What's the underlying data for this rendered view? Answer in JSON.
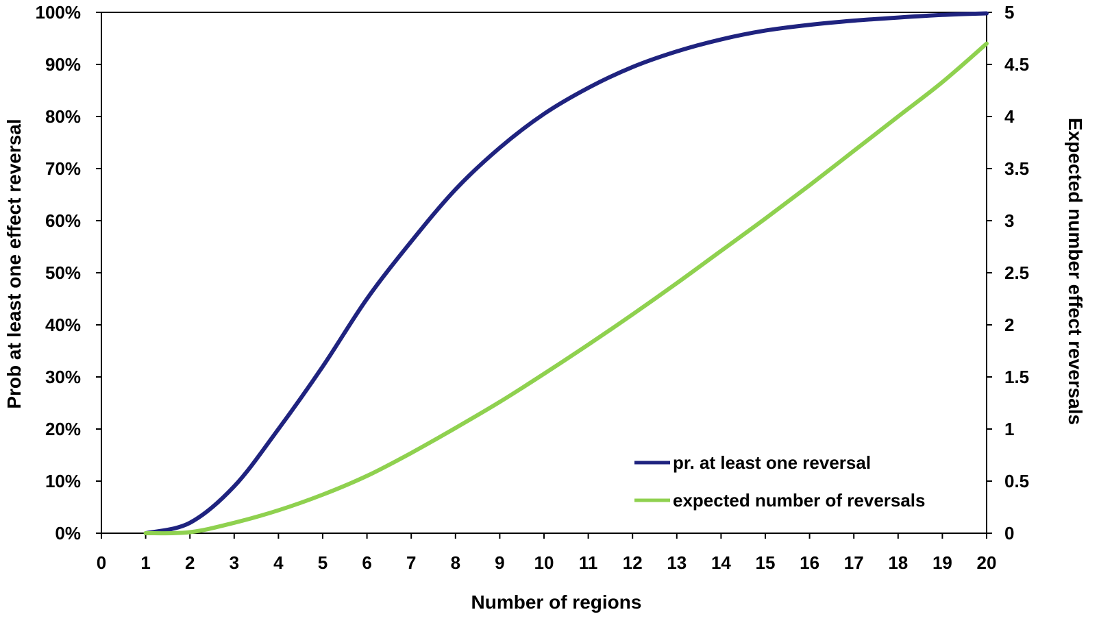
{
  "chart_data": {
    "type": "line",
    "xlabel": "Number of regions",
    "ylabel_left": "Prob at least one effect reversal",
    "ylabel_right": "Expected number effect reversals",
    "xlim": [
      0,
      20
    ],
    "ylim_left": [
      0,
      1
    ],
    "ylim_right": [
      0,
      5
    ],
    "x_ticks": [
      "0",
      "1",
      "2",
      "3",
      "4",
      "5",
      "6",
      "7",
      "8",
      "9",
      "10",
      "11",
      "12",
      "13",
      "14",
      "15",
      "16",
      "17",
      "18",
      "19",
      "20"
    ],
    "y_left_ticks": [
      "0%",
      "10%",
      "20%",
      "30%",
      "40%",
      "50%",
      "60%",
      "70%",
      "80%",
      "90%",
      "100%"
    ],
    "y_right_ticks": [
      "0",
      "0.5",
      "1",
      "1.5",
      "2",
      "2.5",
      "3",
      "3.5",
      "4",
      "4.5",
      "5"
    ],
    "grid": false,
    "legend_position": "bottom-right",
    "series": [
      {
        "name": "pr. at least one reversal",
        "axis": "left",
        "color": "#1f237f",
        "x": [
          1,
          2,
          3,
          4,
          5,
          6,
          7,
          8,
          9,
          10,
          11,
          12,
          13,
          14,
          15,
          16,
          17,
          18,
          19,
          20
        ],
        "y": [
          0.0,
          0.02,
          0.09,
          0.2,
          0.32,
          0.45,
          0.56,
          0.66,
          0.74,
          0.805,
          0.855,
          0.895,
          0.925,
          0.948,
          0.965,
          0.976,
          0.984,
          0.99,
          0.995,
          0.998
        ]
      },
      {
        "name": "expected number of reversals",
        "axis": "right",
        "color": "#8fd14f",
        "x": [
          1,
          2,
          3,
          4,
          5,
          6,
          7,
          8,
          9,
          10,
          11,
          12,
          13,
          14,
          15,
          16,
          17,
          18,
          19,
          20
        ],
        "y": [
          0.0,
          0.01,
          0.1,
          0.22,
          0.37,
          0.55,
          0.77,
          1.01,
          1.26,
          1.53,
          1.81,
          2.1,
          2.4,
          2.71,
          3.02,
          3.34,
          3.67,
          4.0,
          4.33,
          4.7
        ]
      }
    ]
  }
}
